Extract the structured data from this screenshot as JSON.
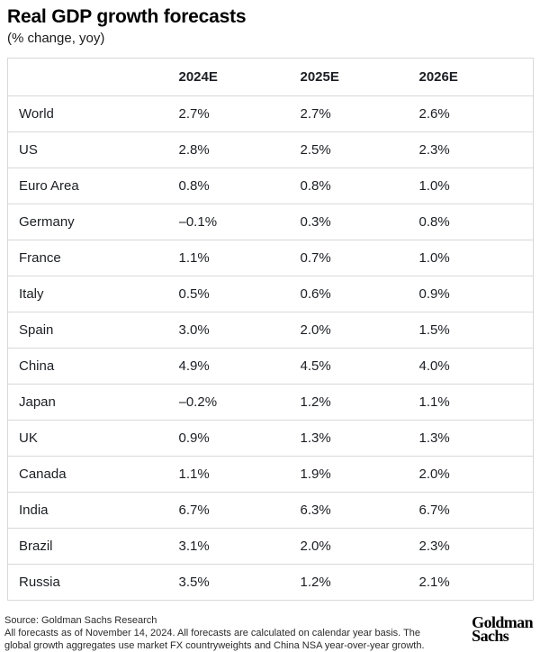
{
  "title": "Real GDP growth forecasts",
  "subtitle": "(% change, yoy)",
  "table": {
    "columns": [
      "2024E",
      "2025E",
      "2026E"
    ],
    "rows": [
      {
        "label": "World",
        "values": [
          "2.7%",
          "2.7%",
          "2.6%"
        ]
      },
      {
        "label": "US",
        "values": [
          "2.8%",
          "2.5%",
          "2.3%"
        ]
      },
      {
        "label": "Euro Area",
        "values": [
          "0.8%",
          "0.8%",
          "1.0%"
        ]
      },
      {
        "label": "Germany",
        "values": [
          "–0.1%",
          "0.3%",
          "0.8%"
        ]
      },
      {
        "label": "France",
        "values": [
          "1.1%",
          "0.7%",
          "1.0%"
        ]
      },
      {
        "label": "Italy",
        "values": [
          "0.5%",
          "0.6%",
          "0.9%"
        ]
      },
      {
        "label": "Spain",
        "values": [
          "3.0%",
          "2.0%",
          "1.5%"
        ]
      },
      {
        "label": "China",
        "values": [
          "4.9%",
          "4.5%",
          "4.0%"
        ]
      },
      {
        "label": "Japan",
        "values": [
          "–0.2%",
          "1.2%",
          "1.1%"
        ]
      },
      {
        "label": "UK",
        "values": [
          "0.9%",
          "1.3%",
          "1.3%"
        ]
      },
      {
        "label": "Canada",
        "values": [
          "1.1%",
          "1.9%",
          "2.0%"
        ]
      },
      {
        "label": "India",
        "values": [
          "6.7%",
          "6.3%",
          "6.7%"
        ]
      },
      {
        "label": "Brazil",
        "values": [
          "3.1%",
          "2.0%",
          "2.3%"
        ]
      },
      {
        "label": "Russia",
        "values": [
          "3.5%",
          "1.2%",
          "2.1%"
        ]
      }
    ]
  },
  "footer": {
    "source": "Source: Goldman Sachs Research",
    "note_line1": "All forecasts as of November 14, 2024. All forecasts are calculated on calendar year basis. The",
    "note_line2": "global growth aggregates use market FX countryweights and China NSA year-over-year growth.",
    "logo_line1": "Goldman",
    "logo_line2": "Sachs"
  },
  "colors": {
    "border": "#d8d8d8",
    "text": "#1b1e23",
    "title": "#000000",
    "background": "#ffffff"
  },
  "chart_data": {
    "type": "table",
    "title": "Real GDP growth forecasts",
    "subtitle": "(% change, yoy)",
    "unit": "% change, yoy",
    "categories": [
      "2024E",
      "2025E",
      "2026E"
    ],
    "series": [
      {
        "name": "World",
        "values": [
          2.7,
          2.7,
          2.6
        ]
      },
      {
        "name": "US",
        "values": [
          2.8,
          2.5,
          2.3
        ]
      },
      {
        "name": "Euro Area",
        "values": [
          0.8,
          0.8,
          1.0
        ]
      },
      {
        "name": "Germany",
        "values": [
          -0.1,
          0.3,
          0.8
        ]
      },
      {
        "name": "France",
        "values": [
          1.1,
          0.7,
          1.0
        ]
      },
      {
        "name": "Italy",
        "values": [
          0.5,
          0.6,
          0.9
        ]
      },
      {
        "name": "Spain",
        "values": [
          3.0,
          2.0,
          1.5
        ]
      },
      {
        "name": "China",
        "values": [
          4.9,
          4.5,
          4.0
        ]
      },
      {
        "name": "Japan",
        "values": [
          -0.2,
          1.2,
          1.1
        ]
      },
      {
        "name": "UK",
        "values": [
          0.9,
          1.3,
          1.3
        ]
      },
      {
        "name": "Canada",
        "values": [
          1.1,
          1.9,
          2.0
        ]
      },
      {
        "name": "India",
        "values": [
          6.7,
          6.3,
          6.7
        ]
      },
      {
        "name": "Brazil",
        "values": [
          3.1,
          2.0,
          2.3
        ]
      },
      {
        "name": "Russia",
        "values": [
          3.5,
          1.2,
          2.1
        ]
      }
    ],
    "source": "Goldman Sachs Research"
  }
}
